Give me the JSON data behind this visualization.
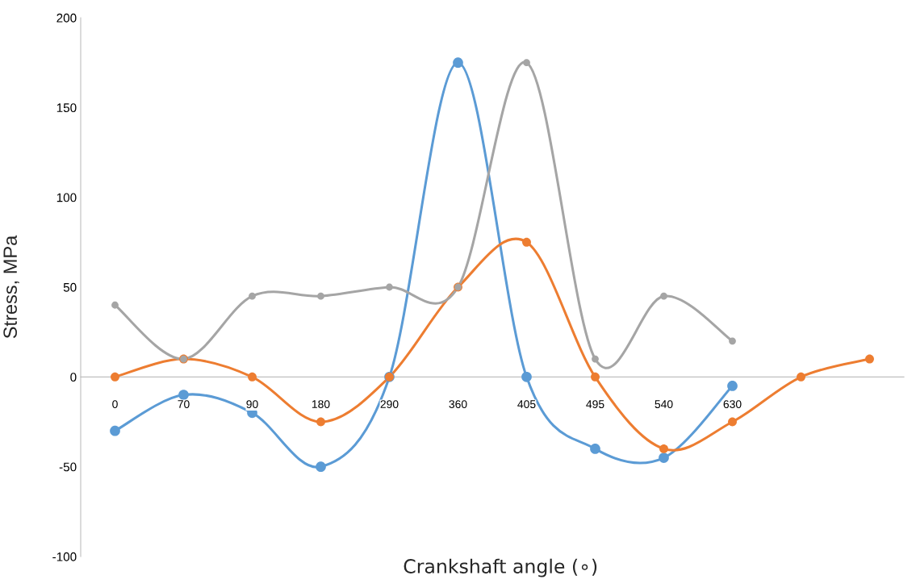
{
  "chart_data": {
    "type": "line",
    "xlabel": "Crankshaft angle (∘)",
    "ylabel": "Stress, MPa",
    "categories": [
      "0",
      "70",
      "90",
      "180",
      "290",
      "360",
      "405",
      "495",
      "540",
      "630",
      null,
      null
    ],
    "series": [
      {
        "color": "#5b9bd5",
        "values": [
          -30,
          -10,
          -20,
          -50,
          0,
          175,
          0,
          -40,
          -45,
          -5,
          null,
          null
        ]
      },
      {
        "color": "#ed7d31",
        "values": [
          0,
          10,
          0,
          -25,
          0,
          50,
          75,
          0,
          -40,
          -25,
          0,
          10
        ]
      },
      {
        "color": "#a5a5a5",
        "values": [
          40,
          10,
          45,
          45,
          50,
          50,
          175,
          10,
          45,
          20,
          null,
          null
        ]
      }
    ],
    "ylim": [
      -100,
      200
    ],
    "yticks": [
      -100,
      -50,
      0,
      50,
      100,
      150,
      200
    ],
    "marker": "circle",
    "line_style": "solid",
    "legend": false
  }
}
